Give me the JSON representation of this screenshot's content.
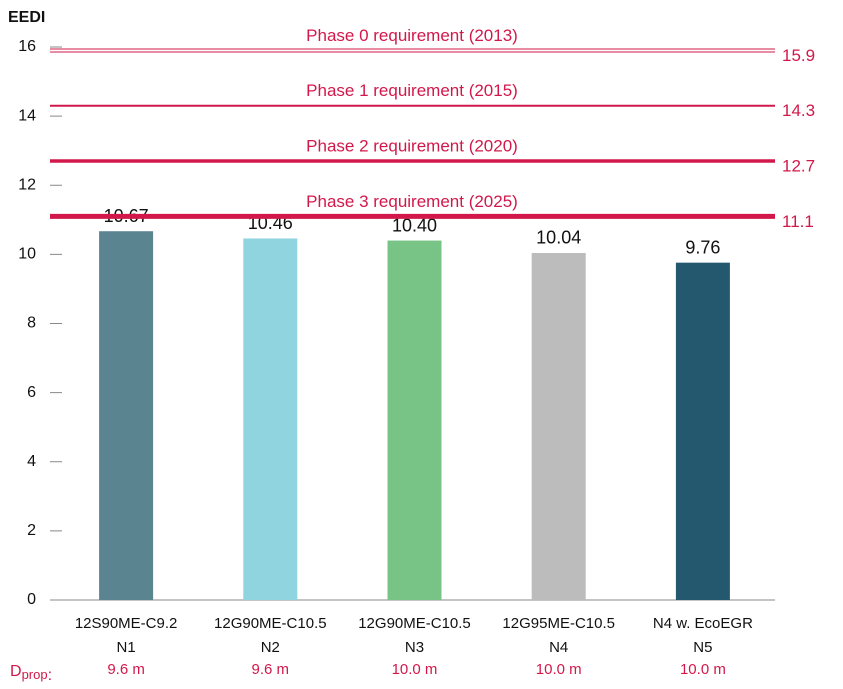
{
  "chart_data": {
    "type": "bar",
    "y_label": "EEDI",
    "categories": [
      "12S90ME-C9.2",
      "12G90ME-C10.5",
      "12G90ME-C10.5",
      "12G95ME-C10.5",
      "N4 w. EcoEGR"
    ],
    "category_codes": [
      "N1",
      "N2",
      "N3",
      "N4",
      "N5"
    ],
    "values": [
      10.67,
      10.46,
      10.4,
      10.04,
      9.76
    ],
    "value_labels": [
      "10.67",
      "10.46",
      "10.40",
      "10.04",
      "9.76"
    ],
    "colors": [
      "#5b8491",
      "#90d4e0",
      "#78c487",
      "#bcbcbd",
      "#23586e"
    ],
    "row_label_main": "D",
    "row_label_sub": "prop",
    "row_label_end": ":",
    "row_values": [
      "9.6 m",
      "9.6 m",
      "10.0 m",
      "10.0 m",
      "10.0 m"
    ],
    "reference_color": "#d2184a",
    "reference_lines": [
      {
        "label": "Phase 0 requirement (2013)",
        "value": 15.9
      },
      {
        "label": "Phase 1 requirement (2015)",
        "value": 14.3
      },
      {
        "label": "Phase 2 requirement (2020)",
        "value": 12.7
      },
      {
        "label": "Phase 3 requirement (2025)",
        "value": 11.1
      }
    ],
    "ylim": [
      0,
      16
    ],
    "yticks": [
      0,
      2,
      4,
      6,
      8,
      10,
      12,
      14,
      16
    ],
    "grid": false
  }
}
